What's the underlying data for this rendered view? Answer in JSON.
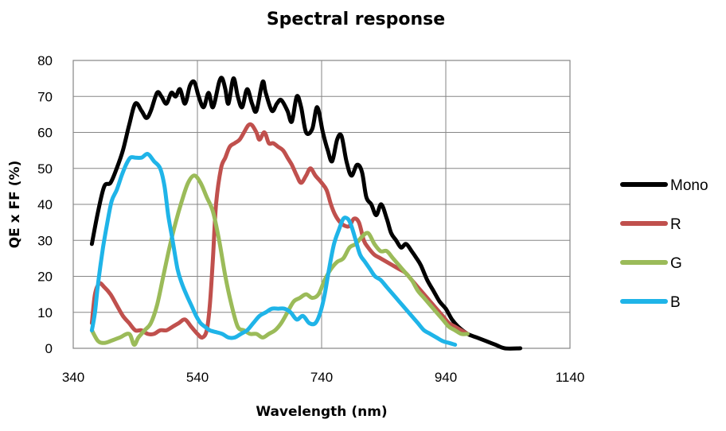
{
  "chart_data": {
    "type": "line",
    "title": "Spectral response",
    "xlabel": "Wavelength (nm)",
    "ylabel": "QE x FF (%)",
    "xlim": [
      340,
      1140
    ],
    "ylim": [
      0,
      80
    ],
    "xticks": [
      "340",
      "540",
      "740",
      "940",
      "1140"
    ],
    "yticks": [
      "0",
      "10",
      "20",
      "30",
      "40",
      "50",
      "60",
      "70",
      "80"
    ],
    "grid": true,
    "legend_position": "right",
    "series": [
      {
        "name": "Mono",
        "color": "#000000",
        "points": [
          [
            370,
            29
          ],
          [
            380,
            38
          ],
          [
            390,
            45
          ],
          [
            400,
            46
          ],
          [
            410,
            50
          ],
          [
            420,
            55
          ],
          [
            430,
            62
          ],
          [
            440,
            68
          ],
          [
            450,
            66
          ],
          [
            458,
            64
          ],
          [
            465,
            66
          ],
          [
            475,
            71
          ],
          [
            482,
            70
          ],
          [
            490,
            68
          ],
          [
            498,
            71
          ],
          [
            505,
            70
          ],
          [
            512,
            72
          ],
          [
            520,
            68
          ],
          [
            528,
            73
          ],
          [
            535,
            74
          ],
          [
            542,
            70
          ],
          [
            550,
            67
          ],
          [
            558,
            71
          ],
          [
            565,
            67
          ],
          [
            575,
            74
          ],
          [
            580,
            75
          ],
          [
            585,
            72
          ],
          [
            590,
            68
          ],
          [
            598,
            75
          ],
          [
            605,
            70
          ],
          [
            612,
            67
          ],
          [
            620,
            72
          ],
          [
            628,
            68
          ],
          [
            635,
            66
          ],
          [
            645,
            74
          ],
          [
            650,
            71
          ],
          [
            660,
            66
          ],
          [
            668,
            68
          ],
          [
            675,
            69
          ],
          [
            685,
            66
          ],
          [
            692,
            63
          ],
          [
            700,
            70
          ],
          [
            707,
            67
          ],
          [
            715,
            60
          ],
          [
            725,
            61
          ],
          [
            733,
            67
          ],
          [
            742,
            60
          ],
          [
            750,
            55
          ],
          [
            757,
            52
          ],
          [
            765,
            58
          ],
          [
            772,
            59
          ],
          [
            780,
            52
          ],
          [
            788,
            48
          ],
          [
            797,
            51
          ],
          [
            805,
            49
          ],
          [
            812,
            42
          ],
          [
            820,
            40
          ],
          [
            828,
            37
          ],
          [
            836,
            40
          ],
          [
            845,
            36
          ],
          [
            852,
            32
          ],
          [
            860,
            30
          ],
          [
            868,
            28
          ],
          [
            876,
            29
          ],
          [
            885,
            27
          ],
          [
            893,
            25
          ],
          [
            900,
            23
          ],
          [
            910,
            19
          ],
          [
            920,
            16
          ],
          [
            930,
            13
          ],
          [
            940,
            11
          ],
          [
            950,
            8
          ],
          [
            960,
            6
          ],
          [
            975,
            4
          ],
          [
            990,
            3
          ],
          [
            1005,
            2
          ],
          [
            1020,
            1
          ],
          [
            1035,
            0
          ],
          [
            1060,
            0
          ]
        ]
      },
      {
        "name": "R",
        "color": "#c0504d",
        "points": [
          [
            370,
            7
          ],
          [
            375,
            15
          ],
          [
            382,
            18
          ],
          [
            390,
            17
          ],
          [
            400,
            15
          ],
          [
            410,
            12
          ],
          [
            420,
            9
          ],
          [
            430,
            7
          ],
          [
            440,
            5
          ],
          [
            450,
            5
          ],
          [
            460,
            4
          ],
          [
            470,
            4
          ],
          [
            480,
            5
          ],
          [
            490,
            5
          ],
          [
            500,
            6
          ],
          [
            510,
            7
          ],
          [
            520,
            8
          ],
          [
            530,
            6
          ],
          [
            540,
            4
          ],
          [
            548,
            3
          ],
          [
            555,
            5
          ],
          [
            560,
            12
          ],
          [
            565,
            25
          ],
          [
            570,
            40
          ],
          [
            578,
            50
          ],
          [
            585,
            53
          ],
          [
            592,
            56
          ],
          [
            600,
            57
          ],
          [
            608,
            58
          ],
          [
            615,
            60
          ],
          [
            622,
            62
          ],
          [
            628,
            62
          ],
          [
            635,
            60
          ],
          [
            640,
            58
          ],
          [
            648,
            60
          ],
          [
            655,
            57
          ],
          [
            662,
            57
          ],
          [
            670,
            56
          ],
          [
            678,
            55
          ],
          [
            685,
            53
          ],
          [
            692,
            51
          ],
          [
            700,
            48
          ],
          [
            707,
            46
          ],
          [
            715,
            48
          ],
          [
            722,
            50
          ],
          [
            730,
            48
          ],
          [
            740,
            46
          ],
          [
            748,
            44
          ],
          [
            755,
            40
          ],
          [
            762,
            37
          ],
          [
            770,
            35
          ],
          [
            778,
            34
          ],
          [
            785,
            34
          ],
          [
            792,
            36
          ],
          [
            800,
            35
          ],
          [
            808,
            30
          ],
          [
            815,
            28
          ],
          [
            825,
            26
          ],
          [
            835,
            25
          ],
          [
            845,
            24
          ],
          [
            855,
            23
          ],
          [
            865,
            22
          ],
          [
            875,
            21
          ],
          [
            885,
            19
          ],
          [
            895,
            17
          ],
          [
            905,
            15
          ],
          [
            915,
            13
          ],
          [
            925,
            11
          ],
          [
            935,
            9
          ],
          [
            945,
            7
          ],
          [
            955,
            6
          ],
          [
            965,
            5
          ],
          [
            975,
            4
          ]
        ]
      },
      {
        "name": "G",
        "color": "#9bbb59",
        "points": [
          [
            370,
            5
          ],
          [
            380,
            2
          ],
          [
            390,
            1.5
          ],
          [
            400,
            2
          ],
          [
            415,
            3
          ],
          [
            430,
            4
          ],
          [
            438,
            1
          ],
          [
            445,
            3
          ],
          [
            455,
            5
          ],
          [
            465,
            7
          ],
          [
            475,
            12
          ],
          [
            485,
            20
          ],
          [
            495,
            28
          ],
          [
            505,
            35
          ],
          [
            515,
            41
          ],
          [
            525,
            46
          ],
          [
            535,
            48
          ],
          [
            545,
            46
          ],
          [
            555,
            42
          ],
          [
            565,
            38
          ],
          [
            575,
            30
          ],
          [
            585,
            20
          ],
          [
            595,
            12
          ],
          [
            605,
            6
          ],
          [
            615,
            5
          ],
          [
            625,
            4
          ],
          [
            635,
            4
          ],
          [
            645,
            3
          ],
          [
            655,
            4
          ],
          [
            665,
            5
          ],
          [
            675,
            7
          ],
          [
            685,
            10
          ],
          [
            695,
            13
          ],
          [
            705,
            14
          ],
          [
            715,
            15
          ],
          [
            725,
            14
          ],
          [
            735,
            15
          ],
          [
            745,
            19
          ],
          [
            755,
            22
          ],
          [
            765,
            24
          ],
          [
            775,
            25
          ],
          [
            785,
            28
          ],
          [
            795,
            29
          ],
          [
            805,
            31
          ],
          [
            815,
            32
          ],
          [
            825,
            29
          ],
          [
            835,
            27
          ],
          [
            845,
            27
          ],
          [
            855,
            25
          ],
          [
            865,
            23
          ],
          [
            875,
            21
          ],
          [
            885,
            19
          ],
          [
            895,
            16
          ],
          [
            905,
            14
          ],
          [
            915,
            12
          ],
          [
            925,
            10
          ],
          [
            935,
            8
          ],
          [
            945,
            6
          ],
          [
            955,
            5
          ],
          [
            965,
            4
          ],
          [
            975,
            4
          ]
        ]
      },
      {
        "name": "B",
        "color": "#1fb4e8",
        "points": [
          [
            370,
            5
          ],
          [
            375,
            10
          ],
          [
            380,
            18
          ],
          [
            388,
            28
          ],
          [
            395,
            35
          ],
          [
            402,
            41
          ],
          [
            410,
            44
          ],
          [
            418,
            48
          ],
          [
            425,
            51
          ],
          [
            432,
            53
          ],
          [
            440,
            53
          ],
          [
            450,
            53
          ],
          [
            460,
            54
          ],
          [
            470,
            52
          ],
          [
            480,
            50
          ],
          [
            487,
            45
          ],
          [
            493,
            37
          ],
          [
            500,
            30
          ],
          [
            508,
            22
          ],
          [
            515,
            18
          ],
          [
            522,
            15
          ],
          [
            530,
            12
          ],
          [
            538,
            9
          ],
          [
            545,
            7
          ],
          [
            552,
            6
          ],
          [
            560,
            5
          ],
          [
            570,
            4.5
          ],
          [
            580,
            4
          ],
          [
            590,
            3
          ],
          [
            600,
            3
          ],
          [
            610,
            4
          ],
          [
            620,
            5
          ],
          [
            630,
            7
          ],
          [
            640,
            9
          ],
          [
            650,
            10
          ],
          [
            660,
            11
          ],
          [
            670,
            11
          ],
          [
            680,
            11
          ],
          [
            690,
            10
          ],
          [
            700,
            8
          ],
          [
            710,
            9
          ],
          [
            720,
            7
          ],
          [
            730,
            7
          ],
          [
            738,
            10
          ],
          [
            745,
            15
          ],
          [
            752,
            22
          ],
          [
            760,
            29
          ],
          [
            768,
            33
          ],
          [
            775,
            36
          ],
          [
            782,
            36
          ],
          [
            788,
            34
          ],
          [
            795,
            30
          ],
          [
            802,
            26
          ],
          [
            810,
            24
          ],
          [
            818,
            22
          ],
          [
            826,
            20
          ],
          [
            835,
            19
          ],
          [
            845,
            17
          ],
          [
            855,
            15
          ],
          [
            865,
            13
          ],
          [
            875,
            11
          ],
          [
            885,
            9
          ],
          [
            895,
            7
          ],
          [
            905,
            5
          ],
          [
            915,
            4
          ],
          [
            925,
            3
          ],
          [
            935,
            2
          ],
          [
            945,
            1.5
          ],
          [
            955,
            1
          ]
        ]
      }
    ]
  }
}
